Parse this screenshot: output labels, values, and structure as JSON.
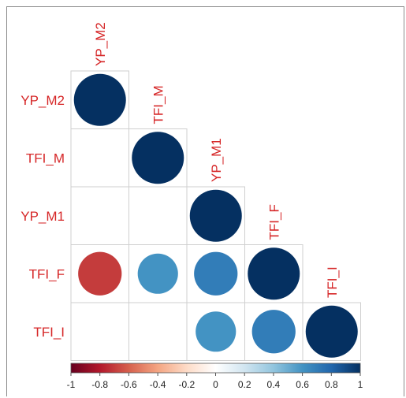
{
  "chart_data": {
    "type": "heatmap",
    "subtype": "correlation-matrix-circles-lower",
    "variables": [
      "YP_M2",
      "TFI_M",
      "YP_M1",
      "TFI_F",
      "TFI_I"
    ],
    "cells": [
      {
        "row": "YP_M2",
        "col": "YP_M2",
        "value": 1.0
      },
      {
        "row": "TFI_M",
        "col": "TFI_M",
        "value": 1.0
      },
      {
        "row": "YP_M1",
        "col": "YP_M1",
        "value": 1.0
      },
      {
        "row": "TFI_F",
        "col": "YP_M2",
        "value": -0.7
      },
      {
        "row": "TFI_F",
        "col": "TFI_M",
        "value": 0.6
      },
      {
        "row": "TFI_F",
        "col": "YP_M1",
        "value": 0.7
      },
      {
        "row": "TFI_F",
        "col": "TFI_F",
        "value": 1.0
      },
      {
        "row": "TFI_I",
        "col": "YP_M1",
        "value": 0.6
      },
      {
        "row": "TFI_I",
        "col": "TFI_F",
        "value": 0.7
      },
      {
        "row": "TFI_I",
        "col": "TFI_I",
        "value": 1.0
      }
    ],
    "colorbar": {
      "ticks": [
        "-1",
        "-0.8",
        "-0.6",
        "-0.4",
        "-0.2",
        "0",
        "0.2",
        "0.4",
        "0.6",
        "0.8",
        "1"
      ],
      "range": [
        -1,
        1
      ],
      "stops": [
        "#67001f",
        "#b2182b",
        "#d6604d",
        "#f4a582",
        "#fddbc7",
        "#ffffff",
        "#d1e5f0",
        "#92c5de",
        "#4393c3",
        "#2166ac",
        "#053061"
      ]
    },
    "label_color": "#d62728",
    "grid": true
  }
}
